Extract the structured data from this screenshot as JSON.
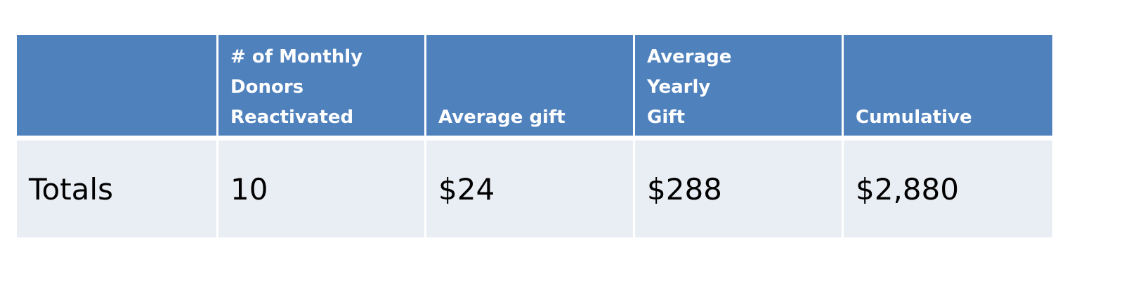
{
  "table": {
    "header": [
      [
        "# of Monthly",
        "Donors",
        "Reactivated"
      ],
      [
        "Average gift"
      ],
      [
        "Average",
        "Yearly",
        "Gift"
      ],
      [
        "Cumulative"
      ]
    ],
    "rows": [
      [
        "Totals",
        "10",
        "$24",
        "$288",
        "$2,880"
      ]
    ]
  }
}
